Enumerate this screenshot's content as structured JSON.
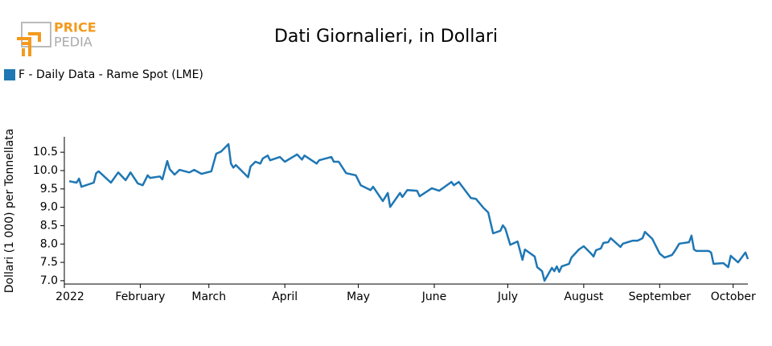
{
  "logo": {
    "top": "PRICE",
    "bottom": "PEDIA"
  },
  "chart_data": {
    "type": "line",
    "title": "Dati Giornalieri, in Dollari",
    "y_label": "Dollari (1 000) per Tonnellata",
    "grid": false,
    "legend": "top-left",
    "xlim": [
      "2022-01-01",
      "2022-10-07"
    ],
    "xticks": [
      {
        "value": "2022-01-01",
        "label": "2022"
      },
      {
        "value": "2022-02-01",
        "label": "February"
      },
      {
        "value": "2022-03-01",
        "label": "March"
      },
      {
        "value": "2022-04-01",
        "label": "April"
      },
      {
        "value": "2022-05-01",
        "label": "May"
      },
      {
        "value": "2022-06-01",
        "label": "June"
      },
      {
        "value": "2022-07-01",
        "label": "July"
      },
      {
        "value": "2022-08-01",
        "label": "August"
      },
      {
        "value": "2022-09-01",
        "label": "September"
      },
      {
        "value": "2022-10-01",
        "label": "October"
      }
    ],
    "ylim": [
      6.91,
      10.92
    ],
    "yticks": [
      {
        "value": 7,
        "label": "7.0"
      },
      7.5,
      {
        "value": 8,
        "label": "8.0"
      },
      8.5,
      {
        "value": 9,
        "label": "9.0"
      },
      9.5,
      {
        "value": 10,
        "label": "10.0"
      },
      10.5
    ],
    "x": [
      "2022-01-03",
      "2022-01-06",
      "2022-01-07",
      "2022-01-08",
      "2022-01-13",
      "2022-01-14",
      "2022-01-15",
      "2022-01-20",
      "2022-01-23",
      "2022-01-26",
      "2022-01-28",
      "2022-01-31",
      "2022-02-02",
      "2022-02-04",
      "2022-02-05",
      "2022-02-09",
      "2022-02-10",
      "2022-02-12",
      "2022-02-13",
      "2022-02-15",
      "2022-02-17",
      "2022-02-21",
      "2022-02-23",
      "2022-02-26",
      "2022-03-02",
      "2022-03-04",
      "2022-03-06",
      "2022-03-09",
      "2022-03-10",
      "2022-03-11",
      "2022-03-12",
      "2022-03-17",
      "2022-03-18",
      "2022-03-20",
      "2022-03-22",
      "2022-03-23",
      "2022-03-25",
      "2022-03-26",
      "2022-03-30",
      "2022-04-01",
      "2022-04-06",
      "2022-04-08",
      "2022-04-09",
      "2022-04-14",
      "2022-04-15",
      "2022-04-20",
      "2022-04-21",
      "2022-04-23",
      "2022-04-26",
      "2022-04-30",
      "2022-05-02",
      "2022-05-06",
      "2022-05-07",
      "2022-05-11",
      "2022-05-13",
      "2022-05-14",
      "2022-05-18",
      "2022-05-19",
      "2022-05-21",
      "2022-05-25",
      "2022-05-26",
      "2022-05-31",
      "2022-06-03",
      "2022-06-08",
      "2022-06-09",
      "2022-06-11",
      "2022-06-16",
      "2022-06-18",
      "2022-06-21",
      "2022-06-23",
      "2022-06-25",
      "2022-06-28",
      "2022-06-29",
      "2022-06-30",
      "2022-07-02",
      "2022-07-05",
      "2022-07-07",
      "2022-07-08",
      "2022-07-12",
      "2022-07-13",
      "2022-07-15",
      "2022-07-16",
      "2022-07-19",
      "2022-07-20",
      "2022-07-21",
      "2022-07-22",
      "2022-07-23",
      "2022-07-26",
      "2022-07-27",
      "2022-07-30",
      "2022-08-01",
      "2022-08-04",
      "2022-08-05",
      "2022-08-06",
      "2022-08-08",
      "2022-08-09",
      "2022-08-11",
      "2022-08-12",
      "2022-08-16",
      "2022-08-17",
      "2022-08-21",
      "2022-08-23",
      "2022-08-25",
      "2022-08-26",
      "2022-08-29",
      "2022-09-01",
      "2022-09-03",
      "2022-09-06",
      "2022-09-07",
      "2022-09-09",
      "2022-09-13",
      "2022-09-14",
      "2022-09-15",
      "2022-09-16",
      "2022-09-21",
      "2022-09-22",
      "2022-09-23",
      "2022-09-27",
      "2022-09-29",
      "2022-09-30",
      "2022-10-03",
      "2022-10-05",
      "2022-10-06",
      "2022-10-07"
    ],
    "series": [
      {
        "name": "F - Daily Data - Rame Spot (LME)",
        "color": "#1f77b4",
        "values": [
          9.71,
          9.67,
          9.78,
          9.56,
          9.67,
          9.93,
          9.98,
          9.67,
          9.95,
          9.74,
          9.95,
          9.65,
          9.6,
          9.87,
          9.8,
          9.84,
          9.76,
          10.26,
          10.04,
          9.89,
          10.02,
          9.95,
          10.02,
          9.91,
          9.98,
          10.46,
          10.52,
          10.72,
          10.19,
          10.08,
          10.15,
          9.82,
          10.11,
          10.24,
          10.19,
          10.33,
          10.41,
          10.28,
          10.37,
          10.24,
          10.44,
          10.3,
          10.41,
          10.19,
          10.28,
          10.37,
          10.24,
          10.24,
          9.93,
          9.87,
          9.6,
          9.47,
          9.56,
          9.17,
          9.39,
          9.01,
          9.39,
          9.28,
          9.47,
          9.45,
          9.3,
          9.52,
          9.45,
          9.69,
          9.6,
          9.69,
          9.25,
          9.23,
          8.99,
          8.86,
          8.29,
          8.36,
          8.51,
          8.42,
          7.98,
          8.07,
          7.57,
          7.85,
          7.66,
          7.37,
          7.26,
          7.0,
          7.35,
          7.26,
          7.39,
          7.24,
          7.39,
          7.46,
          7.63,
          7.85,
          7.94,
          7.74,
          7.66,
          7.83,
          7.88,
          8.03,
          8.05,
          8.16,
          7.92,
          8.01,
          8.09,
          8.09,
          8.16,
          8.33,
          8.14,
          7.74,
          7.63,
          7.7,
          7.79,
          8.01,
          8.05,
          8.23,
          7.85,
          7.81,
          7.81,
          7.77,
          7.46,
          7.48,
          7.37,
          7.68,
          7.5,
          7.68,
          7.77,
          7.59
        ]
      }
    ]
  }
}
